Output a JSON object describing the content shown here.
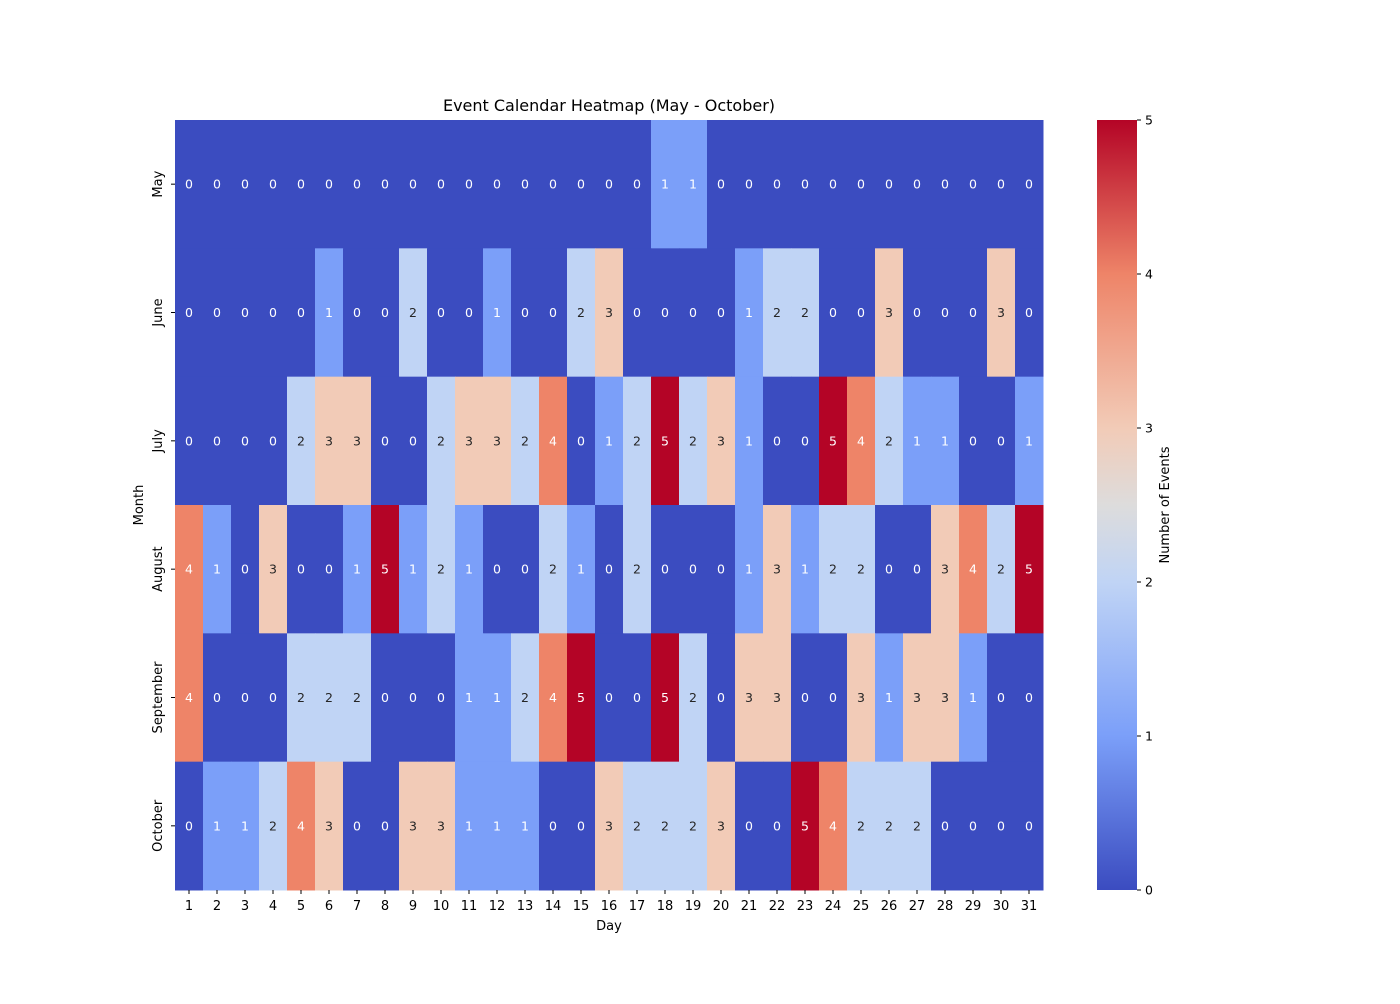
{
  "chart_data": {
    "type": "heatmap",
    "title": "Event Calendar Heatmap (May - October)",
    "xlabel": "Day",
    "ylabel": "Month",
    "colorbar_label": "Number of Events",
    "colormap": "coolwarm",
    "colorbar_range": [
      0,
      5
    ],
    "colorbar_ticks": [
      "0",
      "1",
      "2",
      "3",
      "4",
      "5"
    ],
    "x_categories": [
      "1",
      "2",
      "3",
      "4",
      "5",
      "6",
      "7",
      "8",
      "9",
      "10",
      "11",
      "12",
      "13",
      "14",
      "15",
      "16",
      "17",
      "18",
      "19",
      "20",
      "21",
      "22",
      "23",
      "24",
      "25",
      "26",
      "27",
      "28",
      "29",
      "30",
      "31"
    ],
    "y_categories": [
      "May",
      "June",
      "July",
      "August",
      "September",
      "October"
    ],
    "values": [
      [
        0,
        0,
        0,
        0,
        0,
        0,
        0,
        0,
        0,
        0,
        0,
        0,
        0,
        0,
        0,
        0,
        0,
        1,
        1,
        0,
        0,
        0,
        0,
        0,
        0,
        0,
        0,
        0,
        0,
        0,
        0
      ],
      [
        0,
        0,
        0,
        0,
        0,
        1,
        0,
        0,
        2,
        0,
        0,
        1,
        0,
        0,
        2,
        3,
        0,
        0,
        0,
        0,
        1,
        2,
        2,
        0,
        0,
        3,
        0,
        0,
        0,
        3,
        0
      ],
      [
        0,
        0,
        0,
        0,
        2,
        3,
        3,
        0,
        0,
        2,
        3,
        3,
        2,
        4,
        0,
        1,
        2,
        5,
        2,
        3,
        1,
        0,
        0,
        5,
        4,
        2,
        1,
        1,
        0,
        0,
        1
      ],
      [
        4,
        1,
        0,
        3,
        0,
        0,
        1,
        5,
        1,
        2,
        1,
        0,
        0,
        2,
        1,
        0,
        2,
        0,
        0,
        0,
        1,
        3,
        1,
        2,
        2,
        0,
        0,
        3,
        4,
        2,
        5
      ],
      [
        4,
        0,
        0,
        0,
        2,
        2,
        2,
        0,
        0,
        0,
        1,
        1,
        2,
        4,
        5,
        0,
        0,
        5,
        2,
        0,
        3,
        3,
        0,
        0,
        3,
        1,
        3,
        3,
        1,
        0,
        0
      ],
      [
        0,
        1,
        1,
        2,
        4,
        3,
        0,
        0,
        3,
        3,
        1,
        1,
        1,
        0,
        0,
        3,
        2,
        2,
        2,
        3,
        0,
        0,
        5,
        4,
        2,
        2,
        2,
        0,
        0,
        0,
        0
      ]
    ],
    "annotated": true,
    "colors": {
      "0": "#3b4cc0",
      "1": "#7b9ff9",
      "2": "#c0d4f5",
      "2.5": "#dddcdc",
      "3": "#f2cbb7",
      "4": "#ee8468",
      "5": "#b40426"
    }
  }
}
